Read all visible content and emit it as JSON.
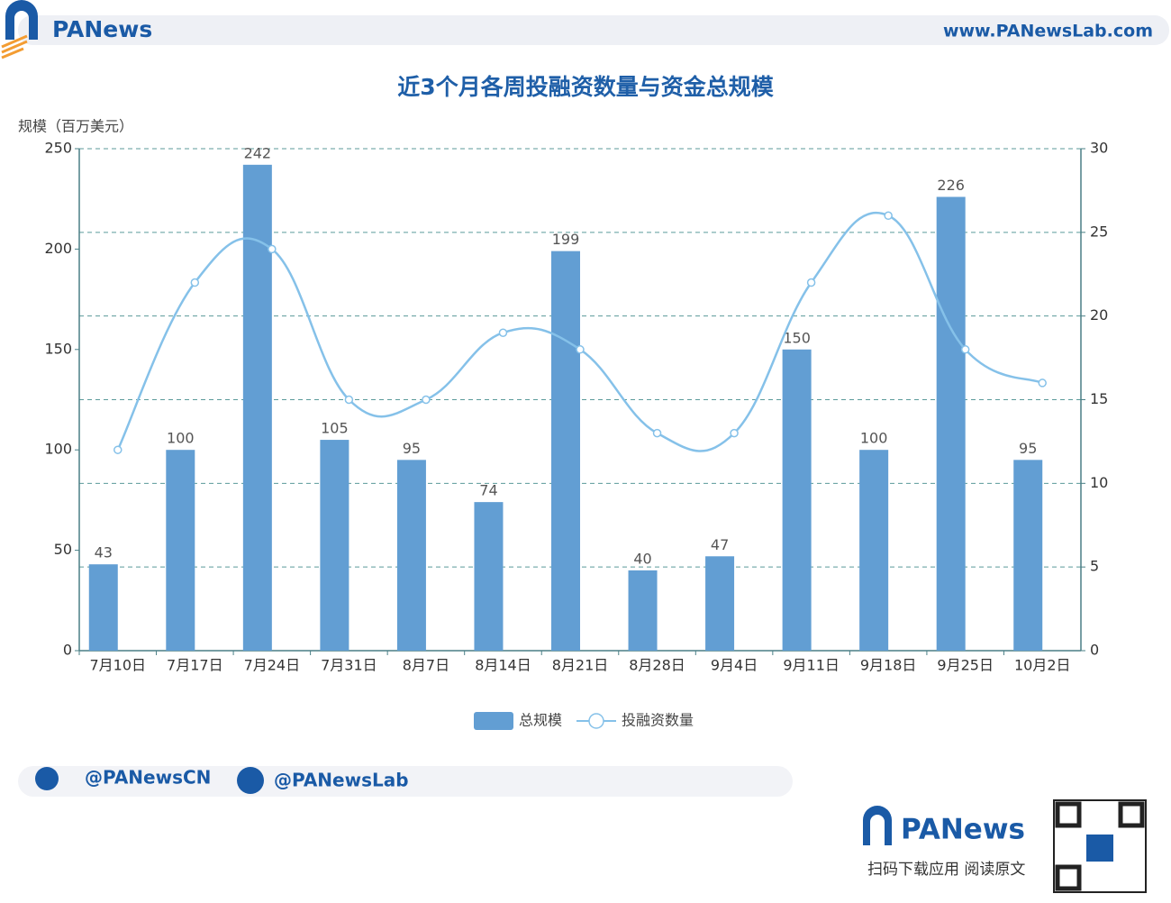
{
  "header": {
    "brand": "PANews",
    "url": "www.PANewsLab.com"
  },
  "chart_data": {
    "type": "bar-line",
    "title": "近3个月各周投融资数量与资金总规模",
    "y_label": "规模（百万美元）",
    "categories": [
      "7月10日",
      "7月17日",
      "7月24日",
      "7月31日",
      "8月7日",
      "8月14日",
      "8月21日",
      "8月28日",
      "9月4日",
      "9月11日",
      "9月18日",
      "9月25日",
      "10月2日"
    ],
    "series": [
      {
        "name": "总规模",
        "type": "bar",
        "color": "#629ed3",
        "values": [
          43,
          100,
          242,
          105,
          95,
          74,
          199,
          40,
          47,
          150,
          100,
          226,
          95
        ]
      },
      {
        "name": "投融资数量",
        "type": "line",
        "axis": "y2",
        "color": "#85c1e9",
        "values": [
          12,
          22,
          24,
          15,
          15,
          19,
          18,
          13,
          13,
          22,
          26,
          18,
          16
        ]
      }
    ],
    "ylim": [
      0,
      250
    ],
    "yticks": [
      0,
      50,
      100,
      150,
      200,
      250
    ],
    "y2lim": [
      0,
      30
    ],
    "y2ticks": [
      0,
      5,
      10,
      15,
      20,
      25,
      30
    ],
    "grid": "y2",
    "legend": "bottom"
  },
  "footer": {
    "twitter": "@PANewsCN",
    "facebook": "@PANewsLab",
    "brand": "PANews",
    "cta": "扫码下载应用 阅读原文"
  }
}
